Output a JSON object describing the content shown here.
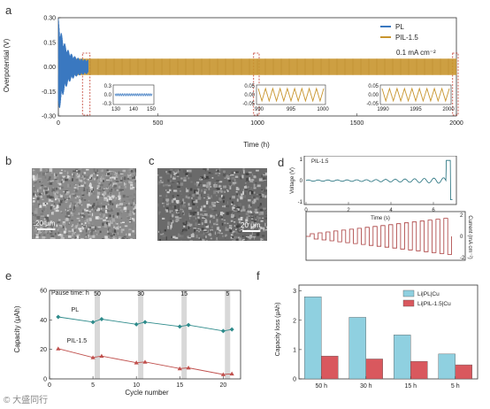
{
  "panels": {
    "a": {
      "label": "a",
      "ylabel": "Overpotential (V)",
      "xlabel": "Time (h)",
      "current_density": "0.1 mA cm⁻²",
      "yticks": [
        "0.30",
        "0.15",
        "0.00",
        "-0.15",
        "-0.30"
      ],
      "xticks": [
        "0",
        "500",
        "1000",
        "1500",
        "2000"
      ],
      "legend": [
        {
          "name": "PL",
          "color": "#3a78c0"
        },
        {
          "name": "PIL-1.5",
          "color": "#c8952e"
        }
      ],
      "insets": [
        {
          "yticks": [
            "0.3",
            "0.0",
            "-0.3"
          ],
          "xticks": [
            "130",
            "140",
            "150"
          ],
          "color": "#3a78c0"
        },
        {
          "yticks": [
            "0.05",
            "0.00",
            "-0.05"
          ],
          "xticks": [
            "990",
            "995",
            "1000"
          ],
          "color": "#c8952e"
        },
        {
          "yticks": [
            "0.05",
            "0.00",
            "-0.05"
          ],
          "xticks": [
            "1990",
            "1995",
            "2000"
          ],
          "color": "#c8952e"
        }
      ]
    },
    "b": {
      "label": "b",
      "scale": "20 μm"
    },
    "c": {
      "label": "c",
      "scale": "20 μm"
    },
    "d": {
      "label": "d",
      "tag": "PIL-1.5",
      "ylabel_top": "Voltage (V)",
      "ylabel_bottom": "Current (mA cm⁻²)",
      "xlabel": "Time (s)",
      "yticks_top": [
        "1",
        "0",
        "-1"
      ],
      "yticks_bottom": [
        "2",
        "0",
        "-2"
      ],
      "xticks": [
        "0",
        "2",
        "4",
        "6"
      ]
    },
    "e": {
      "label": "e",
      "ylabel": "Capacity (μAh)",
      "xlabel": "Cycle number",
      "pause_label": "Pause time: h",
      "pause_values": [
        "50",
        "30",
        "15",
        "5"
      ],
      "yticks": [
        "0",
        "20",
        "40",
        "60"
      ],
      "xticks": [
        "0",
        "5",
        "10",
        "15",
        "20"
      ]
    },
    "f": {
      "label": "f",
      "ylabel": "Capacity loss (μAh)",
      "yticks": [
        "0",
        "1",
        "2",
        "3"
      ]
    }
  },
  "chart_data": [
    {
      "type": "line",
      "panel": "a",
      "xlabel": "Time (h)",
      "ylabel": "Overpotential (V)",
      "xlim": [
        0,
        2000
      ],
      "ylim": [
        -0.3,
        0.3
      ],
      "series": [
        {
          "name": "PL",
          "note_x_end": 150,
          "amplitude_start": 0.3,
          "amplitude_end": 0.04
        },
        {
          "name": "PIL-1.5",
          "x_end": 2000,
          "amplitude": 0.05
        }
      ]
    },
    {
      "type": "line",
      "panel": "d",
      "xlabel": "Time (s)",
      "xlim": [
        0,
        7
      ],
      "series": [
        {
          "name": "Voltage (V)",
          "ylim": [
            -1,
            1
          ]
        },
        {
          "name": "Current (mA cm⁻²)",
          "ylim": [
            -2,
            2
          ]
        }
      ]
    },
    {
      "type": "line",
      "panel": "e",
      "xlabel": "Cycle number",
      "ylabel": "Capacity (μAh)",
      "xlim": [
        0,
        22
      ],
      "ylim": [
        0,
        60
      ],
      "series": [
        {
          "name": "PL",
          "color": "#2e8b8b",
          "x": [
            1,
            5,
            6,
            10,
            11,
            15,
            16,
            20,
            21
          ],
          "y": [
            42,
            38.5,
            40.5,
            37,
            38.5,
            35.5,
            36.5,
            32.5,
            33.5
          ]
        },
        {
          "name": "PIL-1.5",
          "color": "#c0504d",
          "x": [
            1,
            5,
            6,
            10,
            11,
            15,
            16,
            20,
            21
          ],
          "y": [
            20.5,
            14.5,
            15.5,
            11,
            11.5,
            7,
            7.5,
            3,
            3.5
          ]
        }
      ],
      "pause_bands_x": [
        5.5,
        10.5,
        15.5,
        20.5
      ]
    },
    {
      "type": "bar",
      "panel": "f",
      "ylabel": "Capacity loss (μAh)",
      "categories": [
        "50 h",
        "30 h",
        "15 h",
        "5 h"
      ],
      "ylim": [
        0,
        3.2
      ],
      "series": [
        {
          "name": "Li|PL|Cu",
          "color": "#8fd0e0",
          "values": [
            2.8,
            2.1,
            1.5,
            0.85
          ]
        },
        {
          "name": "Li|PIL-1.5|Cu",
          "color": "#d9585e",
          "values": [
            0.78,
            0.68,
            0.6,
            0.48
          ]
        }
      ]
    }
  ],
  "watermark": "© 大盛同行"
}
